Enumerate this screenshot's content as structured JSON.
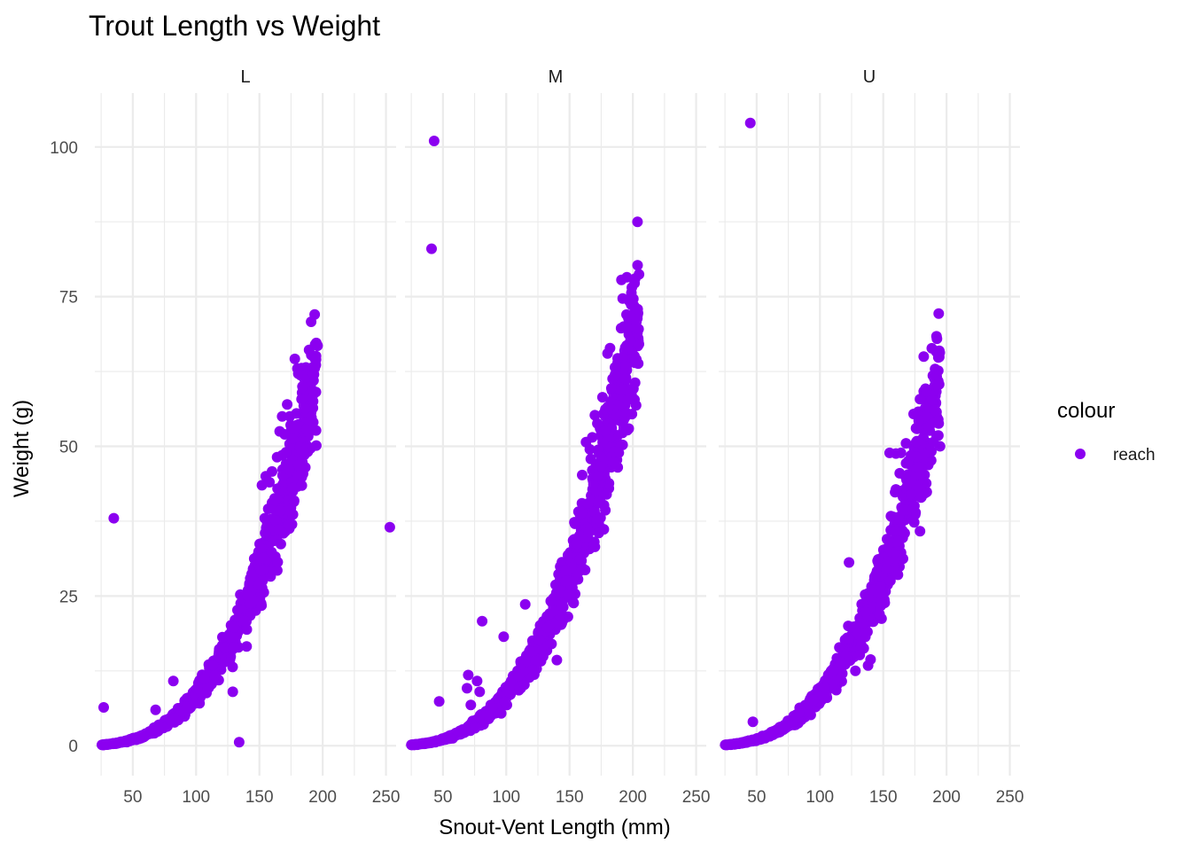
{
  "chart_data": {
    "type": "scatter",
    "title": "Trout Length vs Weight",
    "xlabel": "Snout-Vent Length (mm)",
    "ylabel": "Weight (g)",
    "xlim": [
      20,
      258
    ],
    "ylim": [
      -5,
      109
    ],
    "x_ticks": [
      50,
      100,
      150,
      200,
      250
    ],
    "y_ticks": [
      0,
      25,
      50,
      75,
      100
    ],
    "grid": true,
    "point_color": "#8B00F0",
    "legend": {
      "title": "colour",
      "position": "right",
      "entries": [
        "reach"
      ]
    },
    "facet_labels": [
      "L",
      "M",
      "U"
    ],
    "panels": [
      {
        "facet": "L",
        "ranges": {
          "x": [
            25,
            195
          ],
          "n": 950,
          "scale": 8.5e-06
        },
        "points": [
          [
            35,
            38
          ],
          [
            27,
            6.4
          ],
          [
            129,
            9
          ],
          [
            134,
            0.6
          ],
          [
            253,
            36.5
          ],
          [
            194,
            67
          ],
          [
            196,
            66.8
          ],
          [
            178,
            64.6
          ],
          [
            180,
            63
          ],
          [
            184,
            60
          ],
          [
            192,
            59.3
          ],
          [
            186,
            56.3
          ],
          [
            172,
            57
          ],
          [
            168,
            55
          ],
          [
            174,
            55
          ],
          [
            166,
            52.5
          ],
          [
            170,
            52
          ],
          [
            176,
            51.3
          ],
          [
            185,
            49.2
          ],
          [
            171,
            49
          ],
          [
            176,
            43
          ],
          [
            160,
            45.8
          ],
          [
            155,
            45
          ],
          [
            168,
            48.5
          ],
          [
            164,
            48.2
          ],
          [
            158,
            44
          ],
          [
            152,
            43.5
          ],
          [
            162,
            41
          ],
          [
            82,
            10.8
          ],
          [
            68,
            6.0
          ]
        ]
      },
      {
        "facet": "M",
        "ranges": {
          "x": [
            25,
            205
          ],
          "n": 1000,
          "scale": 8.5e-06
        },
        "points": [
          [
            43,
            101
          ],
          [
            41,
            83
          ],
          [
            191,
            77.8
          ],
          [
            192,
            74.7
          ],
          [
            195,
            72
          ],
          [
            196,
            71.8
          ],
          [
            198,
            67.6
          ],
          [
            194,
            66.5
          ],
          [
            182,
            66.4
          ],
          [
            180,
            65.5
          ],
          [
            188,
            64.7
          ],
          [
            186,
            62
          ],
          [
            184,
            61.3
          ],
          [
            194,
            61.3
          ],
          [
            183,
            59.7
          ],
          [
            176,
            58.2
          ],
          [
            181,
            56.7
          ],
          [
            170,
            55.2
          ],
          [
            172,
            53.8
          ],
          [
            178,
            52.5
          ],
          [
            168,
            51.5
          ],
          [
            163,
            50.7
          ],
          [
            166,
            49.5
          ],
          [
            168,
            46
          ],
          [
            172,
            45
          ],
          [
            160,
            45.2
          ],
          [
            81,
            20.8
          ],
          [
            98,
            18.2
          ],
          [
            115,
            23.6
          ],
          [
            70,
            11.8
          ],
          [
            77,
            10.8
          ],
          [
            69,
            9.6
          ],
          [
            79,
            9.0
          ],
          [
            47,
            7.4
          ],
          [
            140,
            14.3
          ],
          [
            96,
            5.4
          ],
          [
            72,
            6.8
          ]
        ]
      },
      {
        "facet": "U",
        "ranges": {
          "x": [
            25,
            195
          ],
          "n": 950,
          "scale": 8.5e-06
        },
        "points": [
          [
            45,
            104
          ],
          [
            182,
            65
          ],
          [
            192,
            60.3
          ],
          [
            184,
            59.2
          ],
          [
            174,
            55.4
          ],
          [
            183,
            55
          ],
          [
            178,
            54.3
          ],
          [
            186,
            53.2
          ],
          [
            168,
            50.5
          ],
          [
            180,
            50.3
          ],
          [
            176,
            50.7
          ],
          [
            172,
            48.5
          ],
          [
            164,
            48.9
          ],
          [
            155,
            48.9
          ],
          [
            160,
            48.8
          ],
          [
            163,
            45.5
          ],
          [
            178,
            46.5
          ],
          [
            168,
            43
          ],
          [
            172,
            42
          ],
          [
            160,
            42.8
          ],
          [
            123,
            30.6
          ],
          [
            140,
            14.4
          ],
          [
            138,
            13.4
          ],
          [
            128,
            12.5
          ],
          [
            47,
            4.0
          ]
        ]
      }
    ]
  }
}
